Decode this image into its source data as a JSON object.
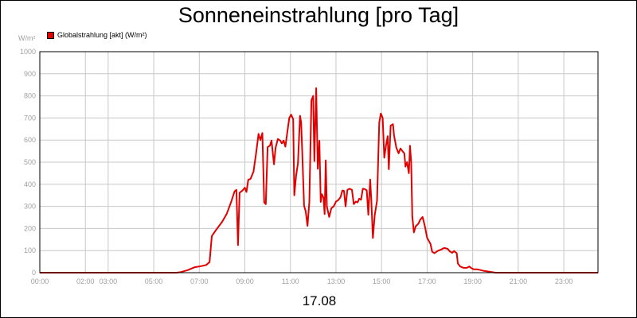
{
  "chart_data": {
    "type": "line",
    "title": "Sonneneinstrahlung [pro Tag]",
    "ylabel": "W/m²",
    "xlabel": "17.08",
    "ylim": [
      0,
      1000
    ],
    "xlim": [
      0,
      24.5
    ],
    "grid": true,
    "legend_position": "top-left",
    "yticks": [
      "0",
      "100",
      "200",
      "300",
      "400",
      "500",
      "600",
      "700",
      "800",
      "900",
      "1000"
    ],
    "xticks": [
      {
        "label": "00:00",
        "hour": 0
      },
      {
        "label": "02:00",
        "hour": 2
      },
      {
        "label": "03:00",
        "hour": 3
      },
      {
        "label": "05:00",
        "hour": 5
      },
      {
        "label": "07:00",
        "hour": 7
      },
      {
        "label": "09:00",
        "hour": 9
      },
      {
        "label": "11:00",
        "hour": 11
      },
      {
        "label": "13:00",
        "hour": 13
      },
      {
        "label": "15:00",
        "hour": 15
      },
      {
        "label": "17:00",
        "hour": 17
      },
      {
        "label": "19:00",
        "hour": 19
      },
      {
        "label": "21:00",
        "hour": 21
      },
      {
        "label": "23:00",
        "hour": 23
      }
    ],
    "series": [
      {
        "name": "Globalstrahlung [akt] (W/m²)",
        "color": "#e00000",
        "points": [
          [
            0.0,
            0
          ],
          [
            6.0,
            0
          ],
          [
            6.2,
            3
          ],
          [
            6.5,
            12
          ],
          [
            6.8,
            25
          ],
          [
            7.1,
            30
          ],
          [
            7.3,
            35
          ],
          [
            7.45,
            48
          ],
          [
            7.55,
            165
          ],
          [
            7.7,
            188
          ],
          [
            8.0,
            230
          ],
          [
            8.2,
            265
          ],
          [
            8.4,
            320
          ],
          [
            8.55,
            368
          ],
          [
            8.63,
            375
          ],
          [
            8.7,
            125
          ],
          [
            8.77,
            362
          ],
          [
            8.9,
            372
          ],
          [
            9.0,
            385
          ],
          [
            9.07,
            365
          ],
          [
            9.15,
            420
          ],
          [
            9.25,
            425
          ],
          [
            9.38,
            458
          ],
          [
            9.5,
            545
          ],
          [
            9.6,
            628
          ],
          [
            9.68,
            600
          ],
          [
            9.77,
            632
          ],
          [
            9.85,
            318
          ],
          [
            9.92,
            310
          ],
          [
            10.0,
            568
          ],
          [
            10.1,
            575
          ],
          [
            10.17,
            598
          ],
          [
            10.28,
            490
          ],
          [
            10.35,
            565
          ],
          [
            10.45,
            605
          ],
          [
            10.55,
            598
          ],
          [
            10.62,
            585
          ],
          [
            10.7,
            598
          ],
          [
            10.78,
            570
          ],
          [
            10.87,
            640
          ],
          [
            10.95,
            700
          ],
          [
            11.03,
            715
          ],
          [
            11.12,
            695
          ],
          [
            11.17,
            350
          ],
          [
            11.25,
            440
          ],
          [
            11.33,
            495
          ],
          [
            11.42,
            710
          ],
          [
            11.47,
            680
          ],
          [
            11.52,
            545
          ],
          [
            11.6,
            302
          ],
          [
            11.67,
            278
          ],
          [
            11.75,
            212
          ],
          [
            11.83,
            320
          ],
          [
            11.92,
            780
          ],
          [
            12.0,
            800
          ],
          [
            12.05,
            505
          ],
          [
            12.13,
            835
          ],
          [
            12.2,
            470
          ],
          [
            12.27,
            597
          ],
          [
            12.33,
            320
          ],
          [
            12.38,
            355
          ],
          [
            12.45,
            340
          ],
          [
            12.5,
            265
          ],
          [
            12.55,
            508
          ],
          [
            12.6,
            300
          ],
          [
            12.7,
            252
          ],
          [
            12.8,
            292
          ],
          [
            12.9,
            300
          ],
          [
            13.0,
            322
          ],
          [
            13.1,
            328
          ],
          [
            13.2,
            342
          ],
          [
            13.28,
            372
          ],
          [
            13.35,
            370
          ],
          [
            13.42,
            300
          ],
          [
            13.5,
            375
          ],
          [
            13.6,
            380
          ],
          [
            13.7,
            375
          ],
          [
            13.78,
            310
          ],
          [
            13.87,
            322
          ],
          [
            13.95,
            318
          ],
          [
            14.02,
            335
          ],
          [
            14.1,
            330
          ],
          [
            14.18,
            380
          ],
          [
            14.27,
            378
          ],
          [
            14.35,
            372
          ],
          [
            14.42,
            262
          ],
          [
            14.5,
            422
          ],
          [
            14.55,
            330
          ],
          [
            14.62,
            157
          ],
          [
            14.7,
            260
          ],
          [
            14.8,
            325
          ],
          [
            14.9,
            680
          ],
          [
            14.97,
            720
          ],
          [
            15.05,
            700
          ],
          [
            15.12,
            520
          ],
          [
            15.2,
            578
          ],
          [
            15.27,
            618
          ],
          [
            15.32,
            468
          ],
          [
            15.4,
            665
          ],
          [
            15.5,
            672
          ],
          [
            15.55,
            620
          ],
          [
            15.65,
            565
          ],
          [
            15.75,
            540
          ],
          [
            15.83,
            562
          ],
          [
            15.92,
            550
          ],
          [
            16.0,
            540
          ],
          [
            16.05,
            480
          ],
          [
            16.12,
            500
          ],
          [
            16.2,
            450
          ],
          [
            16.25,
            575
          ],
          [
            16.3,
            500
          ],
          [
            16.35,
            255
          ],
          [
            16.42,
            182
          ],
          [
            16.5,
            210
          ],
          [
            16.62,
            222
          ],
          [
            16.7,
            240
          ],
          [
            16.8,
            252
          ],
          [
            16.9,
            212
          ],
          [
            17.0,
            158
          ],
          [
            17.15,
            130
          ],
          [
            17.22,
            95
          ],
          [
            17.32,
            88
          ],
          [
            17.45,
            98
          ],
          [
            17.62,
            105
          ],
          [
            17.75,
            112
          ],
          [
            17.9,
            108
          ],
          [
            18.0,
            96
          ],
          [
            18.1,
            90
          ],
          [
            18.18,
            98
          ],
          [
            18.3,
            88
          ],
          [
            18.35,
            42
          ],
          [
            18.45,
            28
          ],
          [
            18.6,
            22
          ],
          [
            18.75,
            22
          ],
          [
            18.85,
            28
          ],
          [
            18.95,
            20
          ],
          [
            19.05,
            15
          ],
          [
            19.2,
            15
          ],
          [
            19.35,
            12
          ],
          [
            19.5,
            8
          ],
          [
            19.7,
            5
          ],
          [
            20.0,
            0
          ],
          [
            24.5,
            0
          ]
        ]
      }
    ]
  }
}
